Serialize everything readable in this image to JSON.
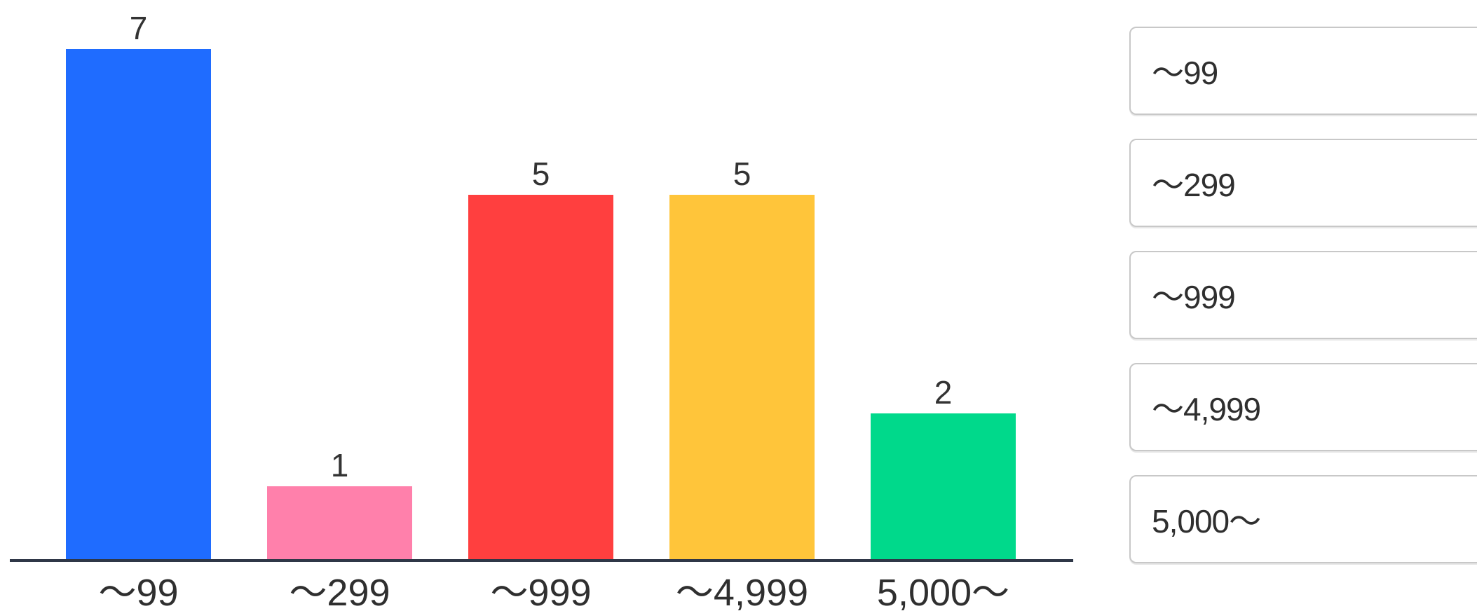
{
  "chart_data": {
    "type": "bar",
    "categories": [
      "～99",
      "～299",
      "～999",
      "～4,999",
      "5,000～"
    ],
    "values": [
      7,
      1,
      5,
      5,
      2
    ],
    "colors": [
      "#1f6cff",
      "#ff80ab",
      "#ff3f3f",
      "#ffc53a",
      "#00d98b"
    ],
    "title": "",
    "xlabel": "",
    "ylabel": "",
    "ylim": [
      0,
      7
    ],
    "grid": false,
    "legend_placement": "right"
  },
  "legend": {
    "items": [
      {
        "label": "～99"
      },
      {
        "label": "～299"
      },
      {
        "label": "～999"
      },
      {
        "label": "～4,999"
      },
      {
        "label": "5,000～"
      }
    ]
  }
}
